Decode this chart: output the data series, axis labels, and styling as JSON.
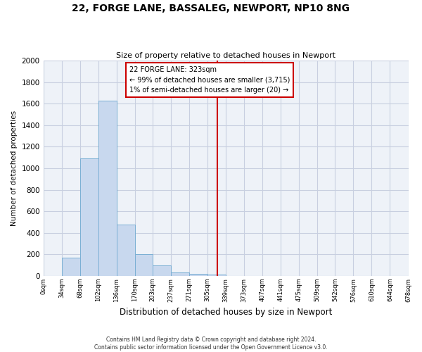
{
  "title": "22, FORGE LANE, BASSALEG, NEWPORT, NP10 8NG",
  "subtitle": "Size of property relative to detached houses in Newport",
  "xlabel": "Distribution of detached houses by size in Newport",
  "ylabel": "Number of detached properties",
  "bar_color": "#c8d8ee",
  "bar_edge_color": "#7aafd4",
  "background_color": "#ffffff",
  "plot_bg_color": "#eef2f8",
  "grid_color": "#c8cfe0",
  "annotation_box_text_line1": "22 FORGE LANE: 323sqm",
  "annotation_box_text_line2": "← 99% of detached houses are smaller (3,715)",
  "annotation_box_text_line3": "1% of semi-detached houses are larger (20) →",
  "vline_x": 323,
  "vline_color": "#cc0000",
  "bin_edges": [
    0,
    34,
    68,
    102,
    136,
    170,
    203,
    237,
    271,
    305,
    339,
    373,
    407,
    441,
    475,
    509,
    542,
    576,
    610,
    644,
    678
  ],
  "bin_labels": [
    "0sqm",
    "34sqm",
    "68sqm",
    "102sqm",
    "136sqm",
    "170sqm",
    "203sqm",
    "237sqm",
    "271sqm",
    "305sqm",
    "339sqm",
    "373sqm",
    "407sqm",
    "441sqm",
    "475sqm",
    "509sqm",
    "542sqm",
    "576sqm",
    "610sqm",
    "644sqm",
    "678sqm"
  ],
  "bar_heights": [
    0,
    170,
    1090,
    1630,
    480,
    200,
    100,
    35,
    20,
    10,
    0,
    0,
    0,
    0,
    0,
    0,
    0,
    0,
    0,
    0
  ],
  "ylim": [
    0,
    2000
  ],
  "yticks": [
    0,
    200,
    400,
    600,
    800,
    1000,
    1200,
    1400,
    1600,
    1800,
    2000
  ],
  "footer_line1": "Contains HM Land Registry data © Crown copyright and database right 2024.",
  "footer_line2": "Contains public sector information licensed under the Open Government Licence v3.0."
}
